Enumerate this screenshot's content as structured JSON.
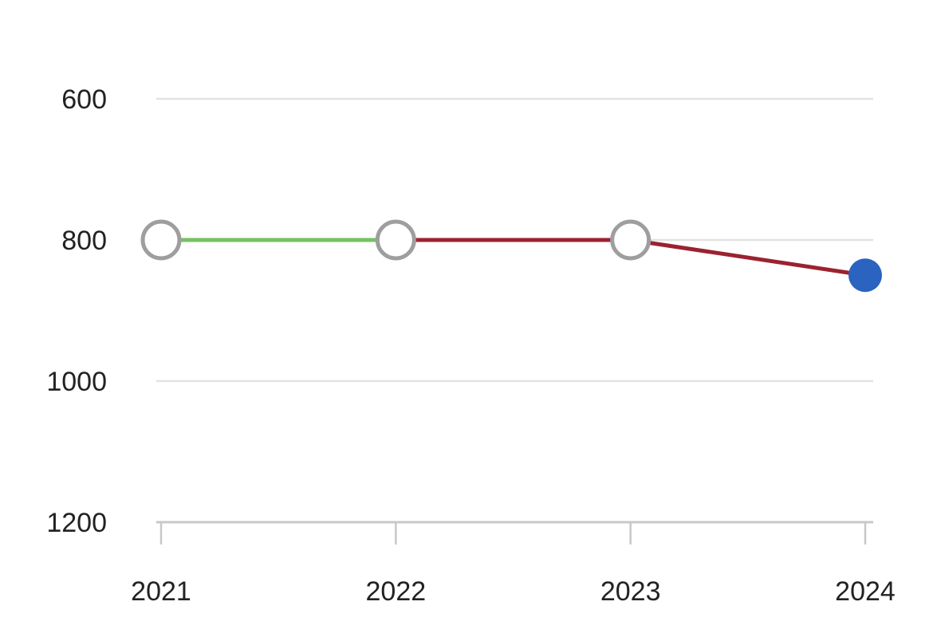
{
  "chart_data": {
    "type": "line",
    "title": "",
    "xlabel": "",
    "ylabel": "",
    "y_inverted": true,
    "ylim": [
      600,
      1200
    ],
    "yticks": [
      600,
      800,
      1000,
      1200
    ],
    "ytick_labels": [
      "600",
      "800",
      "1000",
      "1200"
    ],
    "x": [
      "2021",
      "2022",
      "2023",
      "2024"
    ],
    "values": [
      800,
      800,
      800,
      850
    ],
    "segment_colors": [
      "#74c165",
      "#9b2230",
      "#9b2230"
    ],
    "point_styles": [
      "hollow",
      "hollow",
      "hollow",
      "filled"
    ],
    "colors": {
      "hollow_point_stroke": "#9e9e9e",
      "filled_point": "#2a63c0",
      "gridline": "#e2e2e2",
      "axis": "#c8c8c8"
    },
    "grid": true
  }
}
